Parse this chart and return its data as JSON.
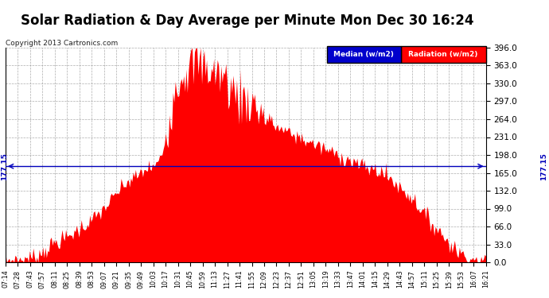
{
  "title": "Solar Radiation & Day Average per Minute Mon Dec 30 16:24",
  "copyright": "Copyright 2013 Cartronics.com",
  "median_value": 177.15,
  "ymin": 0,
  "ymax": 396,
  "yticks": [
    0.0,
    33.0,
    66.0,
    99.0,
    132.0,
    165.0,
    198.0,
    231.0,
    264.0,
    297.0,
    330.0,
    363.0,
    396.0
  ],
  "background_color": "#ffffff",
  "fill_color": "#ff0000",
  "median_color": "#0000bb",
  "legend_median_bg": "#0000cc",
  "legend_radiation_bg": "#ff0000",
  "title_fontsize": 12,
  "copyright_fontsize": 6.5,
  "xtick_labels": [
    "07:14",
    "07:28",
    "07:43",
    "07:57",
    "08:11",
    "08:25",
    "08:39",
    "08:53",
    "09:07",
    "09:21",
    "09:35",
    "09:49",
    "10:03",
    "10:17",
    "10:31",
    "10:45",
    "10:59",
    "11:13",
    "11:27",
    "11:41",
    "11:55",
    "12:09",
    "12:23",
    "12:37",
    "12:51",
    "13:05",
    "13:19",
    "13:33",
    "13:47",
    "14:01",
    "14:15",
    "14:29",
    "14:43",
    "14:57",
    "15:11",
    "15:25",
    "15:39",
    "15:53",
    "16:07",
    "16:21"
  ],
  "radiation_profile": [
    3,
    5,
    8,
    18,
    35,
    45,
    60,
    75,
    95,
    120,
    145,
    160,
    175,
    200,
    310,
    355,
    370,
    355,
    345,
    315,
    300,
    285,
    260,
    245,
    235,
    225,
    215,
    205,
    195,
    185,
    175,
    170,
    155,
    135,
    115,
    85,
    60,
    35,
    15,
    5,
    2
  ],
  "peak_noise_std": 25,
  "low_noise_std": 8,
  "random_seed": 7
}
